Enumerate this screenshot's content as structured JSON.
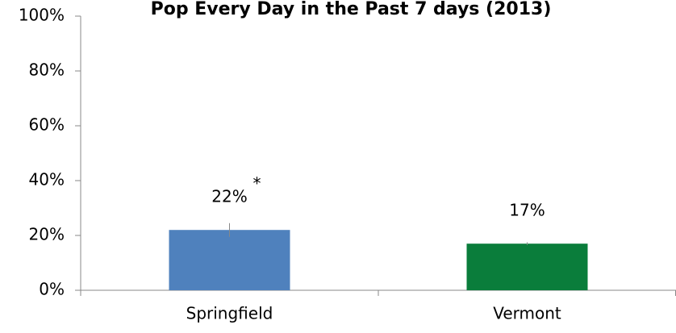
{
  "chart_data": {
    "type": "bar",
    "title": "Pop Every Day in the Past 7 days (2013)",
    "categories": [
      "Springfield",
      "Vermont"
    ],
    "values": [
      22,
      17
    ],
    "value_labels": [
      "22%",
      "17%"
    ],
    "errors": [
      2.5,
      0.5
    ],
    "colors": [
      "#4f81bd",
      "#0a7d3b"
    ],
    "annotation": "*",
    "ylim": [
      0,
      100
    ],
    "yticks": [
      {
        "value": 0,
        "label": "0%"
      },
      {
        "value": 20,
        "label": "20%"
      },
      {
        "value": 40,
        "label": "40%"
      },
      {
        "value": 60,
        "label": "60%"
      },
      {
        "value": 80,
        "label": "80%"
      },
      {
        "value": 100,
        "label": "100%"
      }
    ],
    "grid": false
  }
}
